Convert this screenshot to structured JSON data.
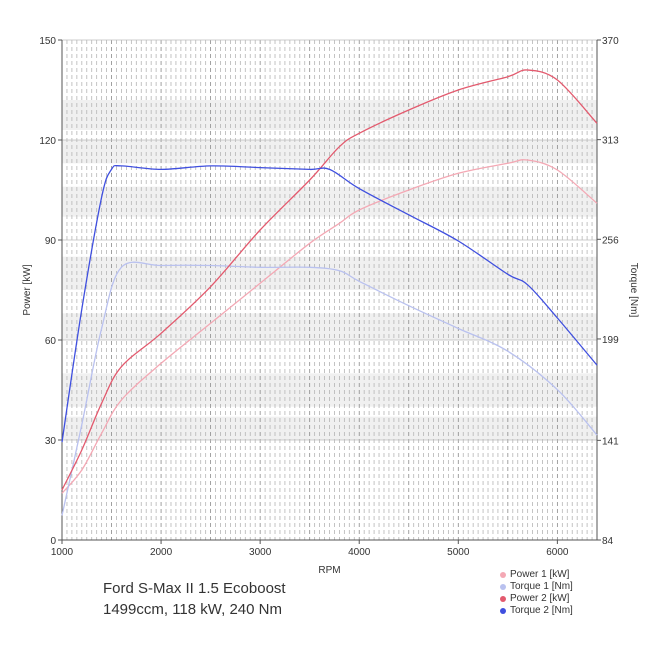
{
  "caption": {
    "line1": "Ford S-Max II 1.5 Ecoboost",
    "line2": "1499ccm, 118 kW, 240 Nm"
  },
  "chart_data": {
    "type": "line",
    "xlabel": "RPM",
    "ylabel_left": "Power [kW]",
    "ylabel_right": "Torque [Nm]",
    "xlim": [
      1000,
      6400
    ],
    "ylim_left": [
      0,
      150
    ],
    "ylim_right": [
      84,
      370
    ],
    "x_ticks": [
      "1000",
      "2000",
      "3000",
      "4000",
      "5000",
      "6000"
    ],
    "y_left_ticks": [
      "0",
      "30",
      "60",
      "90",
      "120",
      "150"
    ],
    "y_right_ticks": [
      "84",
      "141",
      "199",
      "256",
      "313",
      "370"
    ],
    "grid": true,
    "legend_position": "bottom-right",
    "series": [
      {
        "name": "Power 1 [kW]",
        "axis": "left",
        "color": "#f4a8b4",
        "x": [
          1000,
          1200,
          1400,
          1600,
          2000,
          2500,
          3000,
          3500,
          3800,
          4000,
          4500,
          5000,
          5500,
          5700,
          6000,
          6400
        ],
        "y": [
          14,
          21,
          32,
          42,
          53,
          65,
          77,
          89,
          95,
          99,
          105,
          110,
          113,
          114,
          111,
          101
        ]
      },
      {
        "name": "Torque 1 [Nm]",
        "axis": "right",
        "color": "#b9c1ef",
        "x": [
          1000,
          1200,
          1400,
          1600,
          2000,
          2500,
          3000,
          3500,
          3800,
          4000,
          4500,
          5000,
          5500,
          6000,
          6400
        ],
        "y": [
          98,
          150,
          205,
          240,
          241,
          241,
          240,
          240,
          238,
          232,
          218,
          205,
          192,
          170,
          144
        ]
      },
      {
        "name": "Power 2 [kW]",
        "axis": "left",
        "color": "#e35a6e",
        "x": [
          1000,
          1200,
          1400,
          1600,
          2000,
          2500,
          3000,
          3500,
          3800,
          4000,
          4500,
          5000,
          5500,
          5700,
          6000,
          6400
        ],
        "y": [
          15,
          27,
          41,
          52,
          62,
          76,
          93,
          108,
          118,
          122,
          129,
          135,
          139,
          141,
          138,
          125
        ]
      },
      {
        "name": "Torque 2 [Nm]",
        "axis": "right",
        "color": "#3f4fdf",
        "x": [
          1000,
          1200,
          1400,
          1500,
          1600,
          2000,
          2500,
          3000,
          3500,
          3700,
          4000,
          4500,
          5000,
          5500,
          5700,
          6000,
          6400
        ],
        "y": [
          140,
          216,
          280,
          296,
          298,
          296,
          298,
          297,
          296,
          296,
          285,
          270,
          255,
          236,
          230,
          211,
          184
        ]
      }
    ]
  }
}
